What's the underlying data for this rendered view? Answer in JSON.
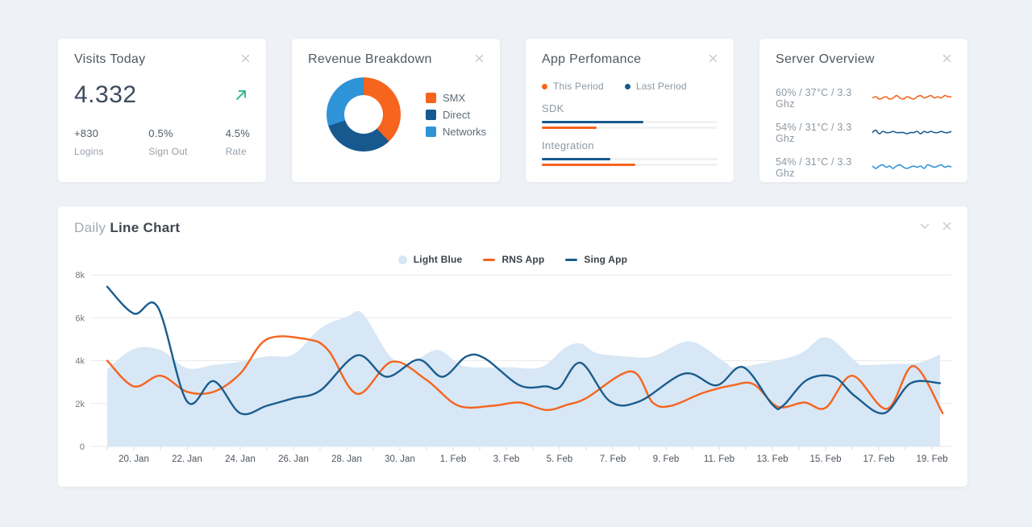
{
  "colors": {
    "orange": "#F6641E",
    "dark_blue": "#17598E",
    "light_blue": "#2F93D8",
    "area_fill": "#D7E7F5",
    "green": "#35B990",
    "grid": "#e9eaec",
    "tick": "#d9dce0",
    "track": "#f1f2f4"
  },
  "icons": {
    "card_close": "close-icon",
    "chart_collapse": "chevron-down-icon",
    "visits_trend": "arrow-up-right-icon"
  },
  "cards": {
    "visits": {
      "title": "Visits Today",
      "value": "4.332",
      "stats": [
        {
          "value": "+830",
          "label": "Logins"
        },
        {
          "value": "0.5%",
          "label": "Sign Out"
        },
        {
          "value": "4.5%",
          "label": "Rate"
        }
      ]
    },
    "revenue": {
      "title": "Revenue Breakdown"
    },
    "performance": {
      "title": "App Perfomance"
    },
    "server": {
      "title": "Server Overview"
    }
  },
  "line_chart_card": {
    "title_light": "Daily",
    "title_bold": "Line Chart"
  },
  "chart_data": [
    {
      "id": "revenue-donut",
      "type": "pie",
      "title": "Revenue Breakdown",
      "labels": [
        "SMX",
        "Direct",
        "Networks"
      ],
      "values": [
        38,
        32,
        30
      ],
      "colors": [
        "#F6641E",
        "#17598E",
        "#2F93D8"
      ],
      "donut_hole": true,
      "legend_position": "right"
    },
    {
      "id": "app-performance-bars",
      "type": "bar",
      "title": "App Perfomance",
      "categories": [
        "SDK",
        "Integration"
      ],
      "series": [
        {
          "name": "Last Period",
          "color": "#17598E",
          "values": [
            58,
            39
          ]
        },
        {
          "name": "This Period",
          "color": "#F6641E",
          "values": [
            31,
            53
          ]
        }
      ],
      "unit": "percent of track width",
      "xlim": [
        0,
        100
      ]
    },
    {
      "id": "server-sparklines",
      "type": "line",
      "title": "Server Overview",
      "series": [
        {
          "name": "60% / 37°C / 3.3 Ghz",
          "color": "#F6641E",
          "values": [
            5,
            6,
            4,
            5,
            6,
            4,
            5,
            7,
            5,
            4,
            6,
            5,
            4,
            6,
            7,
            5,
            6,
            7,
            5,
            6,
            5,
            7,
            6,
            6
          ]
        },
        {
          "name": "54% / 31°C / 3.3 Ghz",
          "color": "#17598E",
          "values": [
            5,
            7,
            4,
            6,
            5,
            5,
            6,
            5,
            5,
            5,
            4,
            5,
            5,
            6,
            4,
            6,
            5,
            6,
            5,
            5,
            6,
            5,
            5,
            6
          ]
        },
        {
          "name": "54% / 31°C / 3.3 Ghz",
          "color": "#2F93D8",
          "values": [
            6,
            4,
            6,
            7,
            5,
            6,
            4,
            6,
            7,
            5,
            4,
            5,
            6,
            5,
            6,
            4,
            7,
            6,
            5,
            6,
            7,
            5,
            6,
            5
          ]
        }
      ],
      "ylim": [
        0,
        10
      ]
    },
    {
      "id": "daily-line-chart",
      "type": "area",
      "title": "Daily Line Chart",
      "x_unit": "days offset from 19. Jan",
      "ylim": [
        0,
        8000
      ],
      "y_ticks": [
        {
          "value": 0,
          "label": "0"
        },
        {
          "value": 2000,
          "label": "2k"
        },
        {
          "value": 4000,
          "label": "4k"
        },
        {
          "value": 6000,
          "label": "6k"
        },
        {
          "value": 8000,
          "label": "8k"
        }
      ],
      "x_ticks": [
        {
          "day": 1,
          "label": "20. Jan"
        },
        {
          "day": 3,
          "label": "22. Jan"
        },
        {
          "day": 5,
          "label": "24. Jan"
        },
        {
          "day": 7,
          "label": "26. Jan"
        },
        {
          "day": 9,
          "label": "28. Jan"
        },
        {
          "day": 11,
          "label": "30. Jan"
        },
        {
          "day": 13,
          "label": "1. Feb"
        },
        {
          "day": 15,
          "label": "3. Feb"
        },
        {
          "day": 17,
          "label": "5. Feb"
        },
        {
          "day": 19,
          "label": "7. Feb"
        },
        {
          "day": 21,
          "label": "9. Feb"
        },
        {
          "day": 23,
          "label": "11. Feb"
        },
        {
          "day": 25,
          "label": "13. Feb"
        },
        {
          "day": 27,
          "label": "15. Feb"
        },
        {
          "day": 29,
          "label": "17. Feb"
        },
        {
          "day": 31,
          "label": "19. Feb"
        }
      ],
      "grid": "horizontal",
      "legend_position": "top-center",
      "series": [
        {
          "name": "Light Blue",
          "type": "area",
          "color": "#D7E7F5",
          "points": [
            [
              0,
              3600
            ],
            [
              1,
              4550
            ],
            [
              2,
              4500
            ],
            [
              3,
              3650
            ],
            [
              4,
              3800
            ],
            [
              5,
              3950
            ],
            [
              6,
              4200
            ],
            [
              7,
              4300
            ],
            [
              8,
              5500
            ],
            [
              9,
              6050
            ],
            [
              9.6,
              6200
            ],
            [
              10.6,
              4250
            ],
            [
              11.3,
              3800
            ],
            [
              12.4,
              4500
            ],
            [
              13.4,
              3750
            ],
            [
              15,
              3700
            ],
            [
              16.3,
              3700
            ],
            [
              17.2,
              4600
            ],
            [
              17.8,
              4800
            ],
            [
              18.4,
              4350
            ],
            [
              19.5,
              4200
            ],
            [
              20.5,
              4200
            ],
            [
              21.9,
              4900
            ],
            [
              23.2,
              3950
            ],
            [
              23.7,
              3700
            ],
            [
              25.9,
              4250
            ],
            [
              27,
              5100
            ],
            [
              28.1,
              4000
            ],
            [
              28.4,
              3800
            ],
            [
              29.5,
              3850
            ],
            [
              30.5,
              3900
            ],
            [
              31.3,
              4300
            ]
          ]
        },
        {
          "name": "RNS App",
          "type": "line",
          "color": "#F6641E",
          "points": [
            [
              0,
              4000
            ],
            [
              1,
              2800
            ],
            [
              2,
              3300
            ],
            [
              3,
              2550
            ],
            [
              4,
              2550
            ],
            [
              5,
              3400
            ],
            [
              6,
              5000
            ],
            [
              7.5,
              5000
            ],
            [
              8.3,
              4500
            ],
            [
              9.4,
              2450
            ],
            [
              10.7,
              3950
            ],
            [
              12,
              3100
            ],
            [
              13.2,
              1900
            ],
            [
              14.5,
              1900
            ],
            [
              15.5,
              2050
            ],
            [
              16.5,
              1700
            ],
            [
              17.3,
              1950
            ],
            [
              18,
              2250
            ],
            [
              19.7,
              3500
            ],
            [
              20.5,
              2050
            ],
            [
              21.2,
              1900
            ],
            [
              22.4,
              2500
            ],
            [
              23.5,
              2850
            ],
            [
              24.3,
              2900
            ],
            [
              25.2,
              1850
            ],
            [
              26.2,
              2050
            ],
            [
              27,
              1800
            ],
            [
              28,
              3300
            ],
            [
              29.3,
              1750
            ],
            [
              30.3,
              3750
            ],
            [
              31.4,
              1550
            ]
          ]
        },
        {
          "name": "Sing App",
          "type": "line",
          "color": "#1A5C8E",
          "points": [
            [
              0,
              7450
            ],
            [
              1,
              6200
            ],
            [
              1.9,
              6500
            ],
            [
              3,
              2100
            ],
            [
              4,
              3050
            ],
            [
              5,
              1550
            ],
            [
              6,
              1900
            ],
            [
              7,
              2250
            ],
            [
              8,
              2600
            ],
            [
              9.4,
              4250
            ],
            [
              10.5,
              3250
            ],
            [
              11.7,
              4050
            ],
            [
              12.6,
              3250
            ],
            [
              13.5,
              4200
            ],
            [
              14.2,
              4100
            ],
            [
              15.5,
              2850
            ],
            [
              16.5,
              2800
            ],
            [
              17,
              2750
            ],
            [
              17.8,
              3900
            ],
            [
              18.9,
              2100
            ],
            [
              20,
              2100
            ],
            [
              21.7,
              3400
            ],
            [
              22.9,
              2850
            ],
            [
              23.9,
              3700
            ],
            [
              25,
              1950
            ],
            [
              25.4,
              1900
            ],
            [
              26.3,
              3100
            ],
            [
              27.3,
              3250
            ],
            [
              28.1,
              2350
            ],
            [
              29.2,
              1550
            ],
            [
              30.2,
              2950
            ],
            [
              31.3,
              2950
            ]
          ]
        }
      ]
    }
  ]
}
